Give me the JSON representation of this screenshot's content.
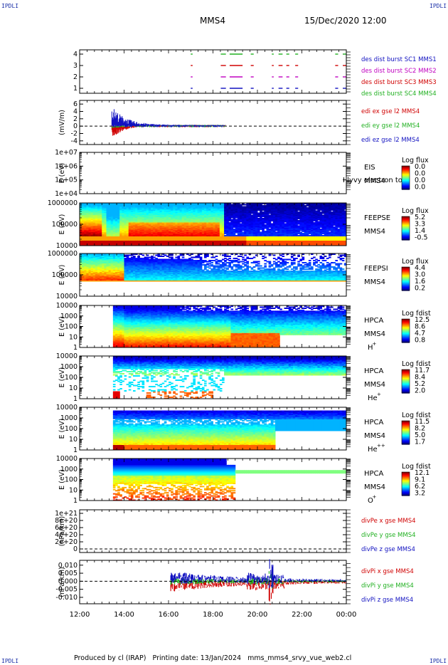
{
  "header": {
    "corner_label": "IPDLI",
    "spacecraft": "MMS4",
    "datetime": "15/Dec/2020 12:00"
  },
  "footer": {
    "text": "Produced by cl (IRAP)   Printing date: 13/Jan/2024   mms_mms4_srvy_vue_web2.cl"
  },
  "colors": {
    "mms1": "#1010c0",
    "mms2": "#c000c0",
    "mms3": "#d00000",
    "mms4": "#20b020",
    "dashed_zero": "#000000"
  },
  "chart_data": [
    {
      "type": "line",
      "panel": "burst",
      "yticks": [
        "4",
        "3",
        "2",
        "1"
      ],
      "ylim": [
        0.5,
        4.5
      ],
      "series": [
        {
          "name": "des dist burst SC1 MMS1",
          "color": "#1010c0"
        },
        {
          "name": "des dist burst SC2 MMS2",
          "color": "#c000c0"
        },
        {
          "name": "des dist burst SC3 MMS3",
          "color": "#d00000"
        },
        {
          "name": "des dist burst SC4 MMS4",
          "color": "#20b020"
        }
      ],
      "burst_intervals_hours": [
        [
          17.0,
          17.05
        ],
        [
          18.35,
          18.55
        ],
        [
          18.75,
          19.3
        ],
        [
          19.7,
          19.8
        ],
        [
          20.65,
          20.7
        ],
        [
          20.95,
          21.1
        ],
        [
          21.3,
          21.4
        ],
        [
          21.7,
          21.8
        ],
        [
          23.5,
          23.6
        ],
        [
          23.85,
          23.95
        ]
      ]
    },
    {
      "type": "line",
      "panel": "edi",
      "ylabel": "(mV/m)",
      "yticks": [
        "6",
        "4",
        "2",
        "0",
        "-2",
        "-4"
      ],
      "ylim": [
        -5,
        7
      ],
      "series": [
        {
          "name": "edi ex gse l2 MMS4",
          "color": "#d00000"
        },
        {
          "name": "edi ey gse l2 MMS4",
          "color": "#20b020"
        },
        {
          "name": "edi ez gse l2 MMS4",
          "color": "#1010c0"
        }
      ]
    },
    {
      "type": "heatmap",
      "panel": "eis",
      "ylabel": "E (eV)",
      "yticks": [
        "1e+07",
        "1e+06",
        "1e+05",
        "1e+04"
      ],
      "instrument": "EIS",
      "spacecraft": "MMS4",
      "cbar_title": "Log flux",
      "cbar_ticks": [
        "0.0",
        "0.0",
        "0.0",
        "0.0"
      ],
      "overlay_text": "I lyvy electron to"
    },
    {
      "type": "heatmap",
      "panel": "feepse",
      "ylabel": "E (eV)",
      "yticks": [
        "1000000",
        "100000",
        "10000"
      ],
      "instrument": "FEEPSE",
      "spacecraft": "MMS4",
      "cbar_title": "Log flux",
      "cbar_ticks": [
        "5.2",
        "3.3",
        "1.4",
        "-0.5"
      ]
    },
    {
      "type": "heatmap",
      "panel": "feepsi",
      "ylabel": "E (eV)",
      "yticks": [
        "1000000",
        "100000",
        "10000"
      ],
      "instrument": "FEEPSI",
      "spacecraft": "MMS4",
      "cbar_title": "Log flux",
      "cbar_ticks": [
        "4.4",
        "3.0",
        "1.6",
        "0.2"
      ]
    },
    {
      "type": "heatmap",
      "panel": "hpca_h",
      "ylabel": "E (eV)",
      "yticks": [
        "10000",
        "1000",
        "100",
        "10",
        "1"
      ],
      "instrument": "HPCA",
      "spacecraft": "MMS4",
      "species": "H",
      "species_sup": "+",
      "cbar_title": "Log fdist",
      "cbar_ticks": [
        "12.5",
        "8.6",
        "4.7",
        "0.8"
      ]
    },
    {
      "type": "heatmap",
      "panel": "hpca_he",
      "ylabel": "E (eV)",
      "yticks": [
        "10000",
        "1000",
        "100",
        "10",
        "1"
      ],
      "instrument": "HPCA",
      "spacecraft": "MMS4",
      "species": "He",
      "species_sup": "+",
      "cbar_title": "Log fdist",
      "cbar_ticks": [
        "11.7",
        "8.4",
        "5.2",
        "2.0"
      ]
    },
    {
      "type": "heatmap",
      "panel": "hpca_hepp",
      "ylabel": "E (eV)",
      "yticks": [
        "10000",
        "1000",
        "100",
        "10",
        "1"
      ],
      "instrument": "HPCA",
      "spacecraft": "MMS4",
      "species": "He",
      "species_sup": "++",
      "cbar_title": "Log fdist",
      "cbar_ticks": [
        "11.5",
        "8.2",
        "5.0",
        "1.7"
      ]
    },
    {
      "type": "heatmap",
      "panel": "hpca_o",
      "ylabel": "E (eV)",
      "yticks": [
        "10000",
        "1000",
        "100",
        "10",
        "1"
      ],
      "instrument": "HPCA",
      "spacecraft": "MMS4",
      "species": "O",
      "species_sup": "+",
      "cbar_title": "Log fdist",
      "cbar_ticks": [
        "12.1",
        "9.1",
        "6.2",
        "3.2"
      ]
    },
    {
      "type": "line",
      "panel": "divpe",
      "ylabel": "(nPa/km)",
      "yticks": [
        "1e+21",
        "8e+20",
        "6e+20",
        "4e+20",
        "2e+20",
        "0"
      ],
      "ylim": [
        -1e+20,
        1.1e+21
      ],
      "series": [
        {
          "name": "divPe x gse MMS4",
          "color": "#d00000"
        },
        {
          "name": "divPe y gse MMS4",
          "color": "#20b020"
        },
        {
          "name": "divPe z gse MMS4",
          "color": "#1010c0"
        }
      ]
    },
    {
      "type": "line",
      "panel": "divpi",
      "ylabel": "(nPa/km)",
      "yticks": [
        "0.010",
        "0.005",
        "0.000",
        "-0.005",
        "-0.010"
      ],
      "ylim": [
        -0.014,
        0.013
      ],
      "series": [
        {
          "name": "divPi x gse MMS4",
          "color": "#d00000"
        },
        {
          "name": "divPi y gse MMS4",
          "color": "#20b020"
        },
        {
          "name": "divPi z gse MMS4",
          "color": "#1010c0"
        }
      ]
    }
  ],
  "time_axis": {
    "xlim_hours": [
      12,
      24
    ],
    "tick_labels": [
      "12:00",
      "14:00",
      "16:00",
      "18:00",
      "20:00",
      "22:00",
      "00:00"
    ]
  }
}
